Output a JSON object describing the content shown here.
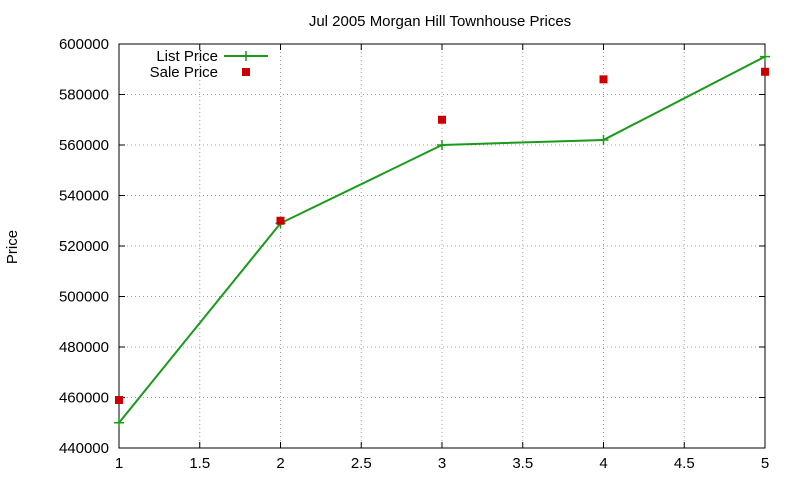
{
  "chart_data": {
    "type": "line",
    "title": "Jul 2005 Morgan Hill Townhouse Prices",
    "xlabel": "",
    "ylabel": "Price",
    "xlim": [
      1,
      5
    ],
    "ylim": [
      440000,
      600000
    ],
    "x_ticks": [
      "1",
      "1.5",
      "2",
      "2.5",
      "3",
      "3.5",
      "4",
      "4.5",
      "5"
    ],
    "x_tick_values": [
      1,
      1.5,
      2,
      2.5,
      3,
      3.5,
      4,
      4.5,
      5
    ],
    "y_ticks": [
      "440000",
      "460000",
      "480000",
      "500000",
      "520000",
      "540000",
      "560000",
      "580000",
      "600000"
    ],
    "y_tick_values": [
      440000,
      460000,
      480000,
      500000,
      520000,
      540000,
      560000,
      580000,
      600000
    ],
    "grid": true,
    "legend_position": "top-left",
    "series": [
      {
        "name": "List Price",
        "style": "line-with-plus-markers",
        "color": "#1a9a1a",
        "x": [
          1,
          2,
          3,
          4,
          5
        ],
        "y": [
          450000,
          529000,
          560000,
          562000,
          595000
        ]
      },
      {
        "name": "Sale Price",
        "style": "square-markers",
        "color": "#cc0000",
        "x": [
          1,
          2,
          3,
          4,
          5
        ],
        "y": [
          459000,
          530000,
          570000,
          586000,
          589000
        ]
      }
    ]
  }
}
